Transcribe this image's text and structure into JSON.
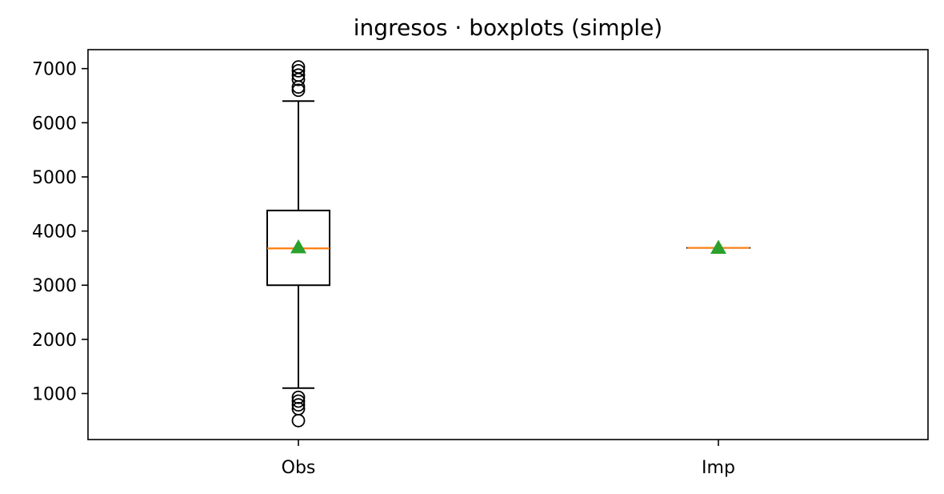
{
  "chart_data": {
    "type": "boxplot",
    "title": "ingresos · boxplots (simple)",
    "categories": [
      "Obs",
      "Imp"
    ],
    "ylim": [
      150,
      7350
    ],
    "yticks": [
      1000,
      2000,
      3000,
      4000,
      5000,
      6000,
      7000
    ],
    "grid": false,
    "boxes": [
      {
        "label": "Obs",
        "whisker_low": 1100,
        "q1": 3000,
        "median": 3680,
        "q3": 4380,
        "whisker_high": 6400,
        "mean": 3700,
        "outliers_low": [
          500,
          720,
          790,
          860,
          930
        ],
        "outliers_high": [
          6600,
          6660,
          6800,
          6880,
          6960,
          7030
        ]
      },
      {
        "label": "Imp",
        "whisker_low": 3690,
        "q1": 3690,
        "median": 3690,
        "q3": 3690,
        "whisker_high": 3690,
        "mean": 3690,
        "outliers_low": [],
        "outliers_high": []
      }
    ],
    "colors": {
      "box": "#000000",
      "median": "#ff7f0e",
      "mean": "#2ca02c",
      "outlier": "#000000"
    }
  }
}
